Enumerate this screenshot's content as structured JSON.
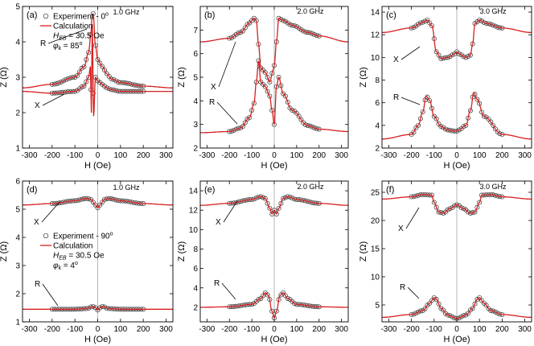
{
  "chart_data": [
    {
      "type": "line",
      "panel": "(a)",
      "frequency": "1.0 GHz",
      "xlabel": "H (Oe)",
      "ylabel": "Z (Ω)",
      "xlim": [
        -330,
        330
      ],
      "ylim": [
        1,
        5
      ],
      "xticks": [
        -300,
        -200,
        -100,
        0,
        100,
        200,
        300
      ],
      "yticks": [
        1,
        2,
        3,
        4,
        5
      ],
      "legend": {
        "experiment": "Experiment  - 0",
        "experiment_sup": "o",
        "calculation": "Calculation",
        "heb": "H",
        "heb_sub": "EB",
        "heb_value": " = 30.5  Oe",
        "phi": "φ",
        "phi_sub": "k",
        "phi_value": " = 85",
        "phi_sup": "o"
      },
      "curve_labels": [
        "R",
        "X"
      ],
      "series": [
        {
          "name": "R",
          "x": [
            -330,
            -200,
            -100,
            -60,
            -40,
            -30,
            -25,
            -20,
            -10,
            0,
            20,
            40,
            60,
            100,
            200,
            330
          ],
          "y": [
            2.7,
            2.8,
            3.0,
            3.3,
            3.7,
            4.2,
            4.7,
            4.8,
            3.9,
            3.5,
            3.3,
            3.1,
            2.95,
            2.85,
            2.75,
            2.7
          ]
        },
        {
          "name": "X",
          "x": [
            -330,
            -200,
            -100,
            -60,
            -40,
            -32,
            -28,
            -24,
            -18,
            -10,
            0,
            20,
            40,
            60,
            100,
            200,
            330
          ],
          "y": [
            2.6,
            2.55,
            2.6,
            2.75,
            3.0,
            3.3,
            2.0,
            4.5,
            1.9,
            3.0,
            2.9,
            2.8,
            2.7,
            2.65,
            2.6,
            2.6,
            2.6
          ]
        }
      ]
    },
    {
      "type": "line",
      "panel": "(b)",
      "frequency": "2.0 GHz",
      "xlabel": "H (Oe)",
      "ylabel": "Z (Ω)",
      "xlim": [
        -330,
        330
      ],
      "ylim": [
        2,
        8
      ],
      "xticks": [
        -300,
        -200,
        -100,
        0,
        100,
        200,
        300
      ],
      "yticks": [
        2,
        3,
        4,
        5,
        6,
        7
      ],
      "curve_labels": [
        "X",
        "R"
      ],
      "series": [
        {
          "name": "X",
          "x": [
            -330,
            -200,
            -150,
            -110,
            -90,
            -80,
            -70,
            -60,
            -40,
            -20,
            -5,
            0,
            10,
            20,
            40,
            80,
            150,
            200,
            330
          ],
          "y": [
            6.5,
            6.65,
            6.9,
            7.3,
            7.5,
            7.4,
            6.4,
            5.4,
            5.2,
            4.8,
            5.3,
            5.5,
            6.5,
            7.5,
            7.4,
            7.2,
            6.9,
            6.75,
            6.5
          ]
        },
        {
          "name": "R",
          "x": [
            -330,
            -200,
            -150,
            -110,
            -90,
            -80,
            -70,
            -60,
            -40,
            -20,
            -10,
            0,
            10,
            20,
            40,
            80,
            150,
            200,
            330
          ],
          "y": [
            2.65,
            2.7,
            2.85,
            3.3,
            3.9,
            4.8,
            5.7,
            4.8,
            4.6,
            4.2,
            3.6,
            3.0,
            4.6,
            5.0,
            4.3,
            3.6,
            2.95,
            2.8,
            2.7
          ]
        }
      ]
    },
    {
      "type": "line",
      "panel": "(c)",
      "frequency": "3.0 GHz",
      "xlabel": "H (Oe)",
      "ylabel": "Z (Ω)",
      "xlim": [
        -330,
        330
      ],
      "ylim": [
        2,
        14.5
      ],
      "xticks": [
        -300,
        -200,
        -100,
        0,
        100,
        200,
        300
      ],
      "yticks": [
        2,
        4,
        6,
        8,
        10,
        12,
        14
      ],
      "curve_labels": [
        "X",
        "R"
      ],
      "series": [
        {
          "name": "X",
          "x": [
            -330,
            -200,
            -150,
            -130,
            -110,
            -90,
            -70,
            -40,
            -10,
            0,
            10,
            40,
            60,
            70,
            80,
            100,
            130,
            200,
            330
          ],
          "y": [
            12.2,
            12.6,
            13.1,
            13.3,
            12.8,
            10.5,
            9.9,
            10.0,
            10.3,
            10.5,
            10.3,
            10.0,
            10.2,
            11.2,
            13.0,
            13.3,
            13.0,
            12.6,
            12.2
          ]
        },
        {
          "name": "R",
          "x": [
            -330,
            -200,
            -170,
            -150,
            -135,
            -120,
            -100,
            -70,
            -40,
            -10,
            0,
            10,
            40,
            60,
            75,
            90,
            120,
            200,
            330
          ],
          "y": [
            2.8,
            3.2,
            4.0,
            5.2,
            6.6,
            6.2,
            4.8,
            3.9,
            3.6,
            3.5,
            3.5,
            3.6,
            4.0,
            5.3,
            6.9,
            6.3,
            4.8,
            3.2,
            2.8
          ]
        }
      ]
    },
    {
      "type": "line",
      "panel": "(d)",
      "frequency": "1.0 GHz",
      "xlabel": "H (Oe)",
      "ylabel": "Z (Ω)",
      "xlim": [
        -330,
        330
      ],
      "ylim": [
        1,
        6
      ],
      "xticks": [
        -300,
        -200,
        -100,
        0,
        100,
        200,
        300
      ],
      "yticks": [
        1,
        2,
        3,
        4,
        5,
        6
      ],
      "legend": {
        "experiment": "Experiment  - 90",
        "experiment_sup": "o",
        "calculation": "Calculation",
        "heb": "H",
        "heb_sub": "EB",
        "heb_value": " = 30.5  Oe",
        "phi": "φ",
        "phi_sub": "k",
        "phi_value": " = 4",
        "phi_sup": "o"
      },
      "curve_labels": [
        "X",
        "R"
      ],
      "series": [
        {
          "name": "X",
          "x": [
            -330,
            -200,
            -100,
            -50,
            -30,
            -10,
            0,
            10,
            30,
            50,
            100,
            200,
            330
          ],
          "y": [
            5.15,
            5.2,
            5.3,
            5.38,
            5.35,
            5.15,
            5.05,
            5.15,
            5.35,
            5.38,
            5.3,
            5.2,
            5.15
          ]
        },
        {
          "name": "R",
          "x": [
            -330,
            -200,
            -100,
            -50,
            -20,
            -10,
            0,
            10,
            20,
            50,
            100,
            200,
            330
          ],
          "y": [
            1.45,
            1.45,
            1.45,
            1.47,
            1.55,
            1.5,
            1.42,
            1.5,
            1.55,
            1.47,
            1.45,
            1.45,
            1.45
          ]
        }
      ]
    },
    {
      "type": "line",
      "panel": "(e)",
      "frequency": "2.0 GHz",
      "xlabel": "H (Oe)",
      "ylabel": "Z (Ω)",
      "xlim": [
        -330,
        330
      ],
      "ylim": [
        0.5,
        15
      ],
      "xticks": [
        -300,
        -200,
        -100,
        0,
        100,
        200,
        300
      ],
      "yticks": [
        2,
        4,
        6,
        8,
        10,
        12,
        14
      ],
      "curve_labels": [
        "X",
        "R"
      ],
      "series": [
        {
          "name": "X",
          "x": [
            -330,
            -200,
            -100,
            -60,
            -40,
            -20,
            -10,
            0,
            10,
            20,
            40,
            60,
            100,
            200,
            330
          ],
          "y": [
            12.5,
            12.7,
            13.1,
            13.4,
            13.2,
            12.2,
            11.6,
            12.0,
            11.6,
            12.2,
            13.2,
            13.4,
            13.1,
            12.7,
            12.5
          ]
        },
        {
          "name": "R",
          "x": [
            -330,
            -200,
            -100,
            -60,
            -40,
            -25,
            -10,
            0,
            10,
            25,
            40,
            60,
            100,
            200,
            330
          ],
          "y": [
            2.0,
            2.05,
            2.3,
            2.9,
            3.5,
            3.2,
            1.6,
            0.9,
            1.6,
            3.2,
            3.5,
            2.9,
            2.3,
            2.05,
            2.0
          ]
        }
      ]
    },
    {
      "type": "line",
      "panel": "(f)",
      "frequency": "3.0 GHz",
      "xlabel": "H (Oe)",
      "ylabel": "Z (Ω)",
      "xlim": [
        -330,
        330
      ],
      "ylim": [
        2,
        27
      ],
      "xticks": [
        -300,
        -200,
        -100,
        0,
        100,
        200,
        300
      ],
      "yticks": [
        5,
        10,
        15,
        20,
        25
      ],
      "curve_labels": [
        "X",
        "R"
      ],
      "series": [
        {
          "name": "X",
          "x": [
            -330,
            -200,
            -150,
            -110,
            -100,
            -80,
            -60,
            -30,
            0,
            30,
            60,
            80,
            100,
            110,
            150,
            200,
            330
          ],
          "y": [
            23.8,
            24.2,
            24.6,
            24.5,
            23.2,
            21.5,
            21.3,
            22.1,
            22.8,
            22.1,
            21.3,
            21.5,
            23.2,
            24.5,
            24.6,
            24.2,
            23.8
          ]
        },
        {
          "name": "R",
          "x": [
            -330,
            -200,
            -150,
            -120,
            -100,
            -90,
            -70,
            -40,
            0,
            40,
            70,
            90,
            100,
            120,
            150,
            200,
            330
          ],
          "y": [
            2.8,
            3.3,
            4.0,
            5.3,
            6.3,
            6.0,
            4.4,
            3.2,
            2.6,
            3.2,
            4.4,
            6.0,
            6.3,
            5.3,
            4.0,
            3.3,
            2.8
          ]
        }
      ]
    }
  ]
}
